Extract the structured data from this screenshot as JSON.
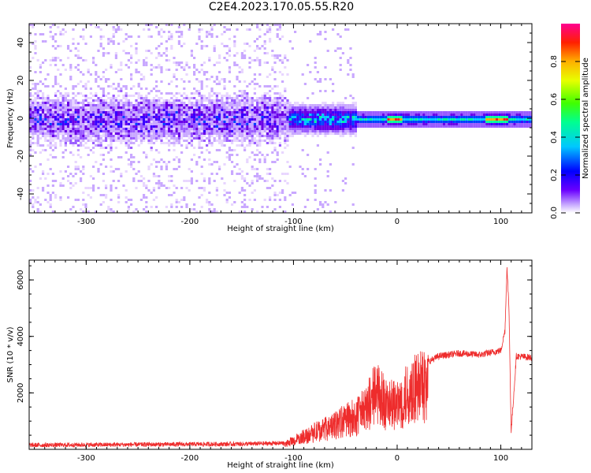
{
  "title": "C2E4.2023.170.05.55.R20",
  "colors": {
    "snr_line": "#ee2c2c",
    "spectro_low": "#d9b8ff",
    "spectro_mid": "#6a00e8",
    "spectro_high": "#00e0ff"
  },
  "chart_data": [
    {
      "type": "heatmap",
      "xlabel": "Height of straight line (km)",
      "ylabel": "Frequency (Hz)",
      "xlim": [
        -355,
        130
      ],
      "ylim": [
        -50,
        50
      ],
      "xticks": [
        -300,
        -200,
        -100,
        0,
        100
      ],
      "yticks": [
        -40,
        -20,
        0,
        20,
        40
      ],
      "grid": false,
      "colorbar": {
        "label": "Normalized spectral amplitude",
        "range": [
          0,
          1
        ],
        "ticks": [
          "0.0",
          "0.2",
          "0.4",
          "0.6",
          "0.8"
        ],
        "colormap": "rainbow (white/violet to magenta)"
      },
      "description_points": {
        "band_center_hz": 0,
        "noise_region_x": [
          -355,
          -105
        ],
        "narrow_band_region_x": [
          -40,
          130
        ],
        "peak_amplitude_x": [
          -5,
          100
        ]
      }
    },
    {
      "type": "line",
      "xlabel": "Height of straight line (km)",
      "ylabel": "SNR (10 * v/v)",
      "xlim": [
        -355,
        130
      ],
      "ylim": [
        0,
        6700
      ],
      "xticks": [
        -300,
        -200,
        -100,
        0,
        100
      ],
      "yticks": [
        2000,
        4000,
        6000
      ],
      "grid": false,
      "series": [
        {
          "x": [
            -355,
            -300,
            -250,
            -200,
            -150,
            -110,
            -100,
            -80,
            -60,
            -50,
            -40,
            -30,
            -20,
            -10,
            0,
            10,
            20,
            30,
            40,
            60,
            80,
            100,
            104,
            106,
            108,
            110,
            115,
            130
          ],
          "y": [
            150,
            160,
            170,
            180,
            190,
            220,
            400,
            800,
            1100,
            1400,
            1500,
            1900,
            2700,
            2100,
            2000,
            2600,
            2900,
            3100,
            3300,
            3400,
            3350,
            3500,
            4200,
            6500,
            4800,
            600,
            3300,
            3250
          ]
        }
      ]
    }
  ]
}
